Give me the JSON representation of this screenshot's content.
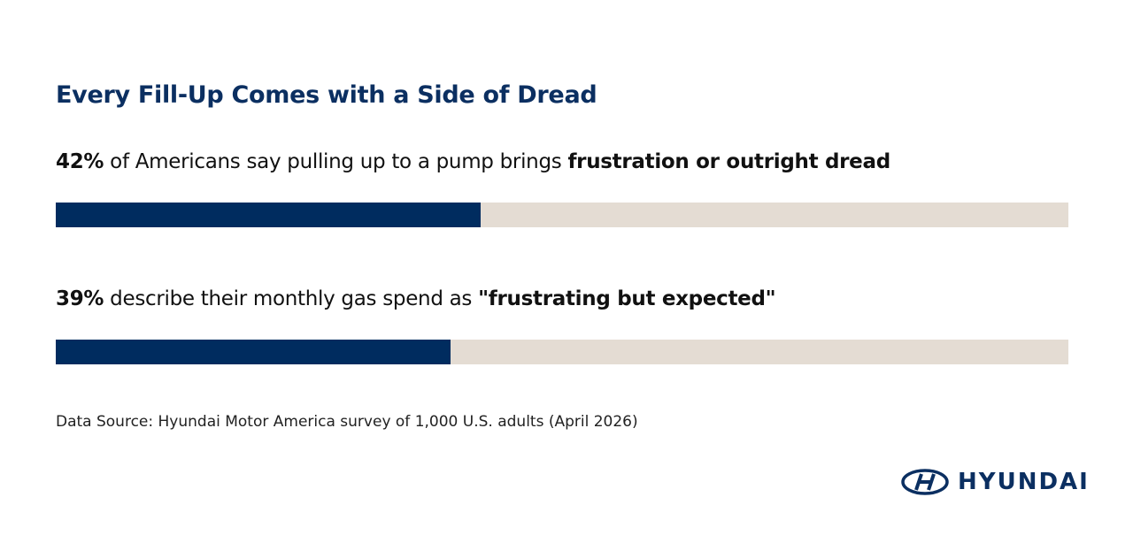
{
  "chart_data": {
    "type": "bar",
    "title": "Every Fill-Up Comes with a Side of Dread",
    "categories": [
      {
        "text": "of Americans say pulling up to a pump brings",
        "emphasis": "frustration or outright dread"
      },
      {
        "text": "describe their monthly gas spend as",
        "emphasis": "\"frustrating but expected\""
      }
    ],
    "values": [
      42,
      39
    ],
    "value_labels": [
      "42%",
      "39%"
    ],
    "color": "#002c5f",
    "track_color": "#e4dcd3",
    "xlim": [
      0,
      100
    ],
    "source": "Data Source: Hyundai Motor America survey of 1,000 U.S. adults (April 2026)",
    "brand": "HYUNDAI"
  }
}
